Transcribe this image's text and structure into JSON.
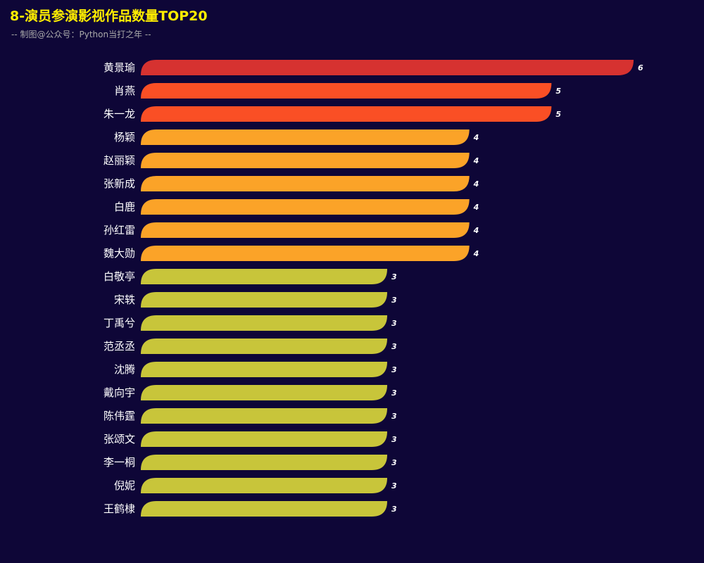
{
  "chart_data": {
    "type": "bar",
    "orientation": "horizontal",
    "title": "8-演员参演影视作品数量TOP20",
    "subtitle": "-- 制图@公众号：Python当打之年 --",
    "categories": [
      "黄景瑜",
      "肖燕",
      "朱一龙",
      "杨颖",
      "赵丽颖",
      "张新成",
      "白鹿",
      "孙红雷",
      "魏大勋",
      "白敬亭",
      "宋轶",
      "丁禹兮",
      "范丞丞",
      "沈腾",
      "戴向宇",
      "陈伟霆",
      "张颂文",
      "李一桐",
      "倪妮",
      "王鹤棣"
    ],
    "values": [
      6,
      5,
      5,
      4,
      4,
      4,
      4,
      4,
      4,
      3,
      3,
      3,
      3,
      3,
      3,
      3,
      3,
      3,
      3,
      3
    ],
    "colors": {
      "6": "#d63230",
      "5": "#fa4f25",
      "4": "#fba328",
      "3": "#c8c53a"
    },
    "xlim": [
      0,
      6
    ],
    "grid": false,
    "legend": "none"
  }
}
